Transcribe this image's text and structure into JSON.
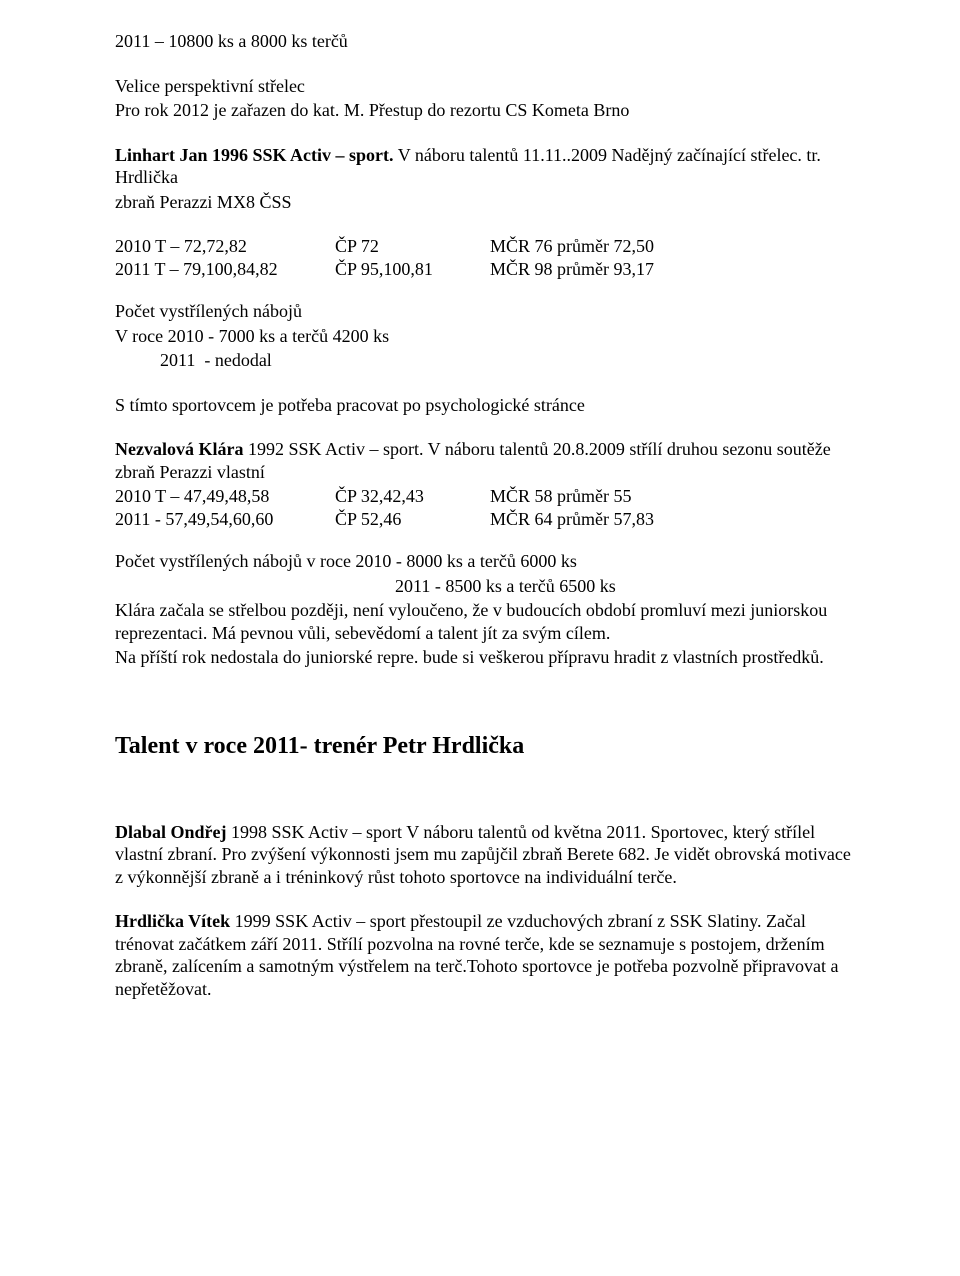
{
  "line_top": "2011 – 10800 ks a 8000 ks terčů",
  "p1_l1": "Velice perspektivní střelec",
  "p1_l2": "Pro  rok 2012 je zařazen do kat. M. Přestup do rezortu CS Kometa Brno",
  "linhart_bold": "Linhart Jan 1996 SSK Activ – sport.",
  "linhart_rest": " V náboru talentů 11.11..2009 Nadějný začínající střelec. tr. Hrdlička",
  "linhart_l3": "zbraň Perazzi MX8 ČSS",
  "linhart_rows": [
    {
      "a": "2010 T – 72,72,82",
      "b": "ČP 72",
      "c": "MČR 76   průměr 72,50"
    },
    {
      "a": "2011 T – 79,100,84,82",
      "b": "ČP 95,100,81",
      "c": "MČR 98  průměr  93,17"
    }
  ],
  "naboj_title": "Počet vystřílených nábojů",
  "naboj_l1": "V roce 2010  - 7000 ks a terčů 4200 ks",
  "naboj_l2": "          2011  - nedodal",
  "psych_line": "S tímto sportovcem je potřeba pracovat po psychologické stránce",
  "nezvalova_bold": "Nezvalová Klára",
  "nezvalova_rest1": " 1992 SSK Activ – sport. V náboru talentů 20.8.2009 střílí druhou sezonu soutěže  zbraň Perazzi  vlastní",
  "nezvalova_rows": [
    {
      "a": "2010 T – 47,49,48,58",
      "b": "ČP 32,42,43",
      "c": "MČR 58    průměr 55"
    },
    {
      "a": "2011  - 57,49,54,60,60",
      "b": "ČP 52,46",
      "c": "MČR 64    průměr 57,83"
    }
  ],
  "nez_p1": "Počet vystřílených nábojů v roce 2010 -  8000 ks a terčů 6000 ks",
  "nez_p2": "2011 -  8500 ks a terčů 6500 ks",
  "nez_p3": "Klára začala se střelbou později, není vyloučeno, že v budoucích období promluví mezi juniorskou reprezentaci. Má pevnou vůli, sebevědomí a talent jít za svým cílem.",
  "nez_p4": "Na příští rok nedostala do juniorské repre. bude si veškerou přípravu hradit z vlastních prostředků.",
  "section_title": "Talent  v roce 2011-  trenér Petr Hrdlička",
  "dlabal_bold": "Dlabal Ondřej ",
  "dlabal_rest": "1998  SSK Activ – sport  V náboru talentů od května 2011. Sportovec, který střílel vlastní zbraní. Pro zvýšení výkonnosti jsem mu zapůjčil zbraň Berete 682. Je vidět obrovská motivace z výkonnější zbraně a i tréninkový růst tohoto sportovce na individuální terče.",
  "hrdlicka_bold": "Hrdlička Vítek",
  "hrdlicka_rest": " 1999 SSK Activ – sport přestoupil ze vzduchových zbraní z SSK Slatiny. Začal trénovat začátkem září 2011. Střílí pozvolna na rovné terče, kde se seznamuje s postojem, držením zbraně, zalícením a samotným výstřelem na terč.Tohoto sportovce je potřeba pozvolně připravovat a nepřetěžovat."
}
